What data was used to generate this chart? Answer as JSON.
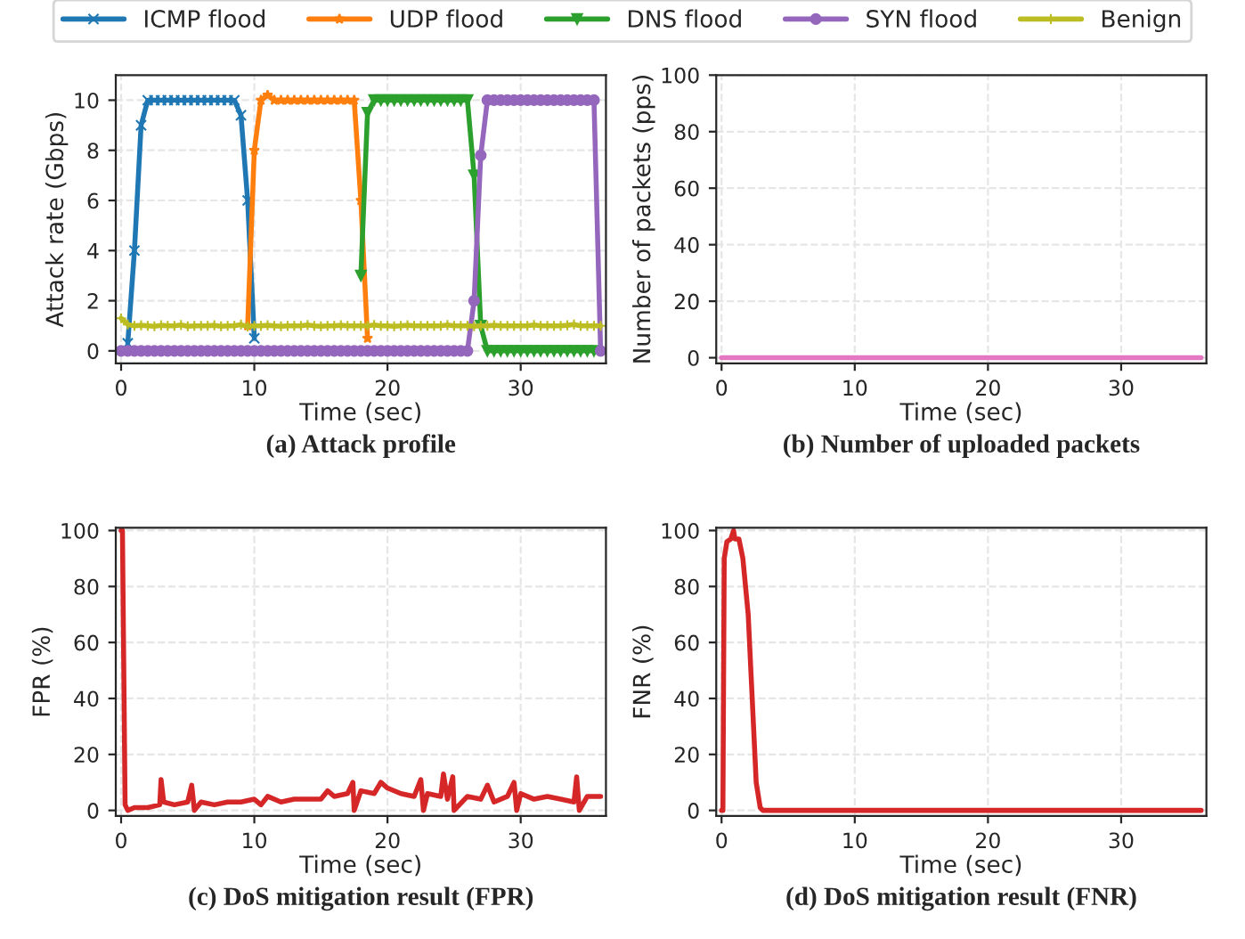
{
  "chart_data": [
    {
      "type": "line",
      "title": "(a) Attack profile",
      "xlabel": "Time (sec)",
      "ylabel": "Attack rate (Gbps)",
      "xlim": [
        -0.4,
        36.4
      ],
      "ylim": [
        -0.5,
        11
      ],
      "xticks": [
        0,
        10,
        20,
        30
      ],
      "yticks": [
        0,
        2,
        4,
        6,
        8,
        10
      ],
      "grid": true,
      "legend": "top",
      "line_style": "solid",
      "x": [
        0,
        0.5,
        1,
        1.5,
        2,
        2.5,
        3,
        3.5,
        4,
        4.5,
        5,
        5.5,
        6,
        6.5,
        7,
        7.5,
        8,
        8.5,
        9,
        9.5,
        10,
        10.5,
        11,
        11.5,
        12,
        12.5,
        13,
        13.5,
        14,
        14.5,
        15,
        15.5,
        16,
        16.5,
        17,
        17.5,
        18,
        18.5,
        19,
        19.5,
        20,
        20.5,
        21,
        21.5,
        22,
        22.5,
        23,
        23.5,
        24,
        24.5,
        25,
        25.5,
        26,
        26.5,
        27,
        27.5,
        28,
        28.5,
        29,
        29.5,
        30,
        30.5,
        31,
        31.5,
        32,
        32.5,
        33,
        33.5,
        34,
        34.5,
        35,
        35.5,
        36
      ],
      "series": [
        {
          "name": "ICMP flood",
          "color": "#1f77b4",
          "marker": "cross",
          "values": [
            null,
            0.3,
            4,
            9,
            10,
            10,
            10,
            10,
            10,
            10,
            10,
            10,
            10,
            10,
            10,
            10,
            10,
            10,
            9.4,
            6,
            0.5,
            null,
            null,
            null,
            null,
            null,
            null,
            null,
            null,
            null,
            null,
            null,
            null,
            null,
            null,
            null,
            null,
            null,
            null,
            null,
            null,
            null,
            null,
            null,
            null,
            null,
            null,
            null,
            null,
            null,
            null,
            null,
            null,
            null,
            null,
            null,
            null,
            null,
            null,
            null,
            null,
            null,
            null,
            null,
            null,
            null,
            null,
            null,
            null,
            null,
            null,
            null,
            null
          ]
        },
        {
          "name": "UDP flood",
          "color": "#ff7f0e",
          "marker": "star",
          "values": [
            null,
            null,
            null,
            null,
            null,
            null,
            null,
            null,
            null,
            null,
            null,
            null,
            null,
            null,
            null,
            null,
            null,
            null,
            null,
            1,
            8,
            10,
            10.2,
            10,
            10,
            10,
            10,
            10,
            10,
            10,
            10,
            10,
            10,
            10,
            10,
            10,
            6,
            0.5,
            null,
            null,
            null,
            null,
            null,
            null,
            null,
            null,
            null,
            null,
            null,
            null,
            null,
            null,
            null,
            null,
            null,
            null,
            null,
            null,
            null,
            null,
            null,
            null,
            null,
            null,
            null,
            null,
            null,
            null,
            null,
            null,
            null,
            null,
            null
          ]
        },
        {
          "name": "DNS flood",
          "color": "#2ca02c",
          "marker": "triangle",
          "values": [
            null,
            null,
            null,
            null,
            null,
            null,
            null,
            null,
            null,
            null,
            null,
            null,
            null,
            null,
            null,
            null,
            null,
            null,
            null,
            null,
            null,
            null,
            null,
            null,
            null,
            null,
            null,
            null,
            null,
            null,
            null,
            null,
            null,
            null,
            null,
            null,
            3,
            9.5,
            10,
            10,
            10,
            10,
            10,
            10,
            10,
            10,
            10,
            10,
            10,
            10,
            10,
            10,
            10,
            7,
            1,
            0,
            0,
            0,
            0,
            0,
            0,
            0,
            0,
            0,
            0,
            0,
            0,
            0,
            0,
            0,
            0,
            0,
            null
          ]
        },
        {
          "name": "SYN flood",
          "color": "#9467bd",
          "marker": "circle",
          "values": [
            0,
            0,
            0,
            0,
            0,
            0,
            0,
            0,
            0,
            0,
            0,
            0,
            0,
            0,
            0,
            0,
            0,
            0,
            0,
            0,
            0,
            0,
            0,
            0,
            0,
            0,
            0,
            0,
            0,
            0,
            0,
            0,
            0,
            0,
            0,
            0,
            0,
            0,
            0,
            0,
            0,
            0,
            0,
            0,
            0,
            0,
            0,
            0,
            0,
            0,
            0,
            0,
            0,
            2,
            7.8,
            10,
            10,
            10,
            10,
            10,
            10,
            10,
            10,
            10,
            10,
            10,
            10,
            10,
            10,
            10,
            10,
            10,
            0
          ]
        },
        {
          "name": "Benign",
          "color": "#bcbd22",
          "marker": "plus",
          "values": [
            1.3,
            1.05,
            1.0,
            1.02,
            1.0,
            0.98,
            1.02,
            1.0,
            1.0,
            1.03,
            0.98,
            1.0,
            1.0,
            1.0,
            1.02,
            0.98,
            1.0,
            1.0,
            1.05,
            0.97,
            1.0,
            1.0,
            1.02,
            1.0,
            0.98,
            1.0,
            1.0,
            1.0,
            1.03,
            1.0,
            0.98,
            1.0,
            1.0,
            1.02,
            1.0,
            1.0,
            1.0,
            1.0,
            1.03,
            1.0,
            1.0,
            0.98,
            1.0,
            1.02,
            1.0,
            1.0,
            1.0,
            1.0,
            1.0,
            1.03,
            1.0,
            1.0,
            1.0,
            0.98,
            1.0,
            1.0,
            1.02,
            1.0,
            1.0,
            1.0,
            1.0,
            1.0,
            1.03,
            1.0,
            1.0,
            1.0,
            1.0,
            1.02,
            1.05,
            1.0,
            1.0,
            1.0,
            1.0
          ]
        }
      ]
    },
    {
      "type": "line",
      "title": "(b) Number of uploaded packets",
      "xlabel": "Time (sec)",
      "ylabel": "Number of packets (pps)",
      "xlim": [
        -0.4,
        36.4
      ],
      "ylim": [
        -2,
        100
      ],
      "xticks": [
        0,
        10,
        20,
        30
      ],
      "yticks": [
        0,
        20,
        40,
        60,
        80,
        100
      ],
      "grid": true,
      "line_style": "solid",
      "x": [
        0,
        36
      ],
      "series": [
        {
          "color": "#e377c2",
          "values": [
            0,
            0
          ]
        }
      ]
    },
    {
      "type": "line",
      "title": "(c) DoS mitigation result (FPR)",
      "xlabel": "Time (sec)",
      "ylabel": "FPR (%)",
      "xlim": [
        -0.4,
        36.4
      ],
      "ylim": [
        -2,
        101
      ],
      "xticks": [
        0,
        10,
        20,
        30
      ],
      "yticks": [
        0,
        20,
        40,
        60,
        80,
        100
      ],
      "grid": true,
      "line_style": "solid",
      "x": [
        0,
        0.1,
        0.3,
        0.5,
        1,
        2,
        2.9,
        3,
        3.2,
        4,
        5,
        5.3,
        5.5,
        6,
        7,
        8,
        9,
        10,
        10.5,
        11,
        12,
        13,
        14,
        15,
        15.5,
        16,
        17,
        17.4,
        17.5,
        18,
        19,
        19.5,
        20,
        21,
        22,
        22.5,
        22.7,
        23,
        24,
        24.2,
        24.5,
        24.9,
        25,
        26,
        27,
        27.5,
        28,
        29,
        29.5,
        29.7,
        30,
        31,
        32,
        33,
        34,
        34.2,
        34.4,
        35,
        36
      ],
      "series": [
        {
          "color": "#d62728",
          "values": [
            100,
            100,
            2,
            0,
            1,
            1,
            2,
            11,
            3,
            2,
            3,
            9,
            0,
            3,
            2,
            3,
            3,
            4,
            2,
            5,
            3,
            4,
            4,
            4,
            7,
            5,
            6,
            10,
            0,
            7,
            6,
            10,
            8,
            6,
            5,
            11,
            0,
            6,
            5,
            13,
            4,
            12,
            0,
            5,
            4,
            9,
            3,
            5,
            10,
            0,
            6,
            4,
            5,
            4,
            3,
            12,
            0,
            5,
            5
          ]
        }
      ]
    },
    {
      "type": "line",
      "title": "(d) DoS mitigation result (FNR)",
      "xlabel": "Time (sec)",
      "ylabel": "FNR (%)",
      "xlim": [
        -0.4,
        36.4
      ],
      "ylim": [
        -2,
        101
      ],
      "xticks": [
        0,
        10,
        20,
        30
      ],
      "yticks": [
        0,
        20,
        40,
        60,
        80,
        100
      ],
      "grid": true,
      "line_style": "solid",
      "x": [
        0,
        0.1,
        0.2,
        0.4,
        0.7,
        0.9,
        1,
        1.3,
        1.6,
        2,
        2.3,
        2.6,
        2.9,
        3.1,
        36
      ],
      "series": [
        {
          "color": "#d62728",
          "values": [
            0,
            0,
            90,
            96,
            97,
            100,
            97,
            97,
            90,
            70,
            40,
            10,
            1,
            0,
            0
          ]
        }
      ]
    }
  ]
}
